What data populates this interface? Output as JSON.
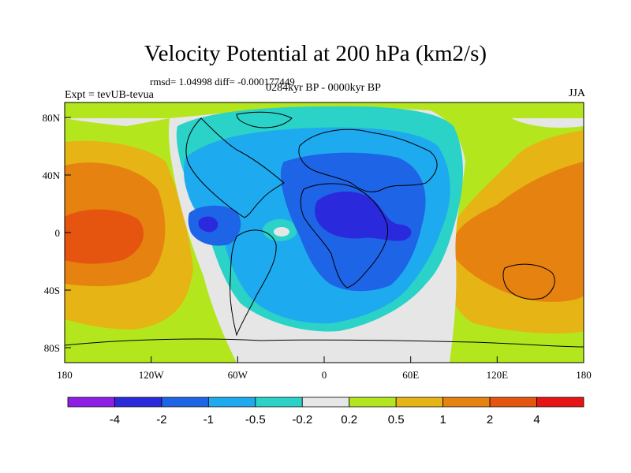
{
  "title": "Velocity Potential at 200 hPa (km2/s)",
  "stats": "rmsd= 1.04998 diff= -0.000177449",
  "expt": "Expt = tevUB-tevua",
  "period": "0284kyr BP - 0000kyr BP",
  "season": "JJA",
  "axes": {
    "x_ticks": [
      "180",
      "120W",
      "60W",
      "0",
      "60E",
      "120E",
      "180"
    ],
    "y_ticks": [
      "80N",
      "40N",
      "0",
      "40S",
      "80S"
    ]
  },
  "colorbar": {
    "colors": [
      "#8e1ee6",
      "#2a2adc",
      "#1e64e6",
      "#1eaaee",
      "#2ad2c8",
      "#e6e6e6",
      "#b4e61e",
      "#e6b414",
      "#e6820f",
      "#e6550f",
      "#e61414"
    ],
    "labels": [
      "-4",
      "-2",
      "-1",
      "-0.5",
      "-0.2",
      "0.2",
      "0.5",
      "1",
      "2",
      "4"
    ]
  }
}
